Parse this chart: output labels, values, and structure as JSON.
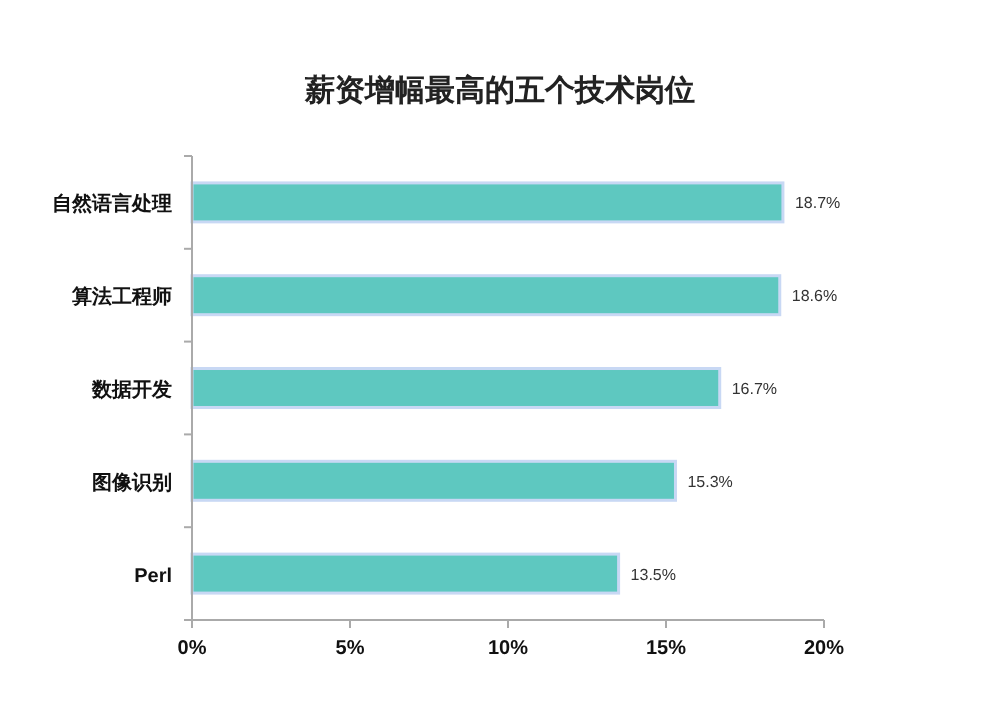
{
  "chart_data": {
    "type": "bar",
    "orientation": "horizontal",
    "title": "薪资增幅最高的五个技术岗位",
    "categories": [
      "自然语言处理",
      "算法工程师",
      "数据开发",
      "图像识别",
      "Perl"
    ],
    "values": [
      18.7,
      18.6,
      16.7,
      15.3,
      13.5
    ],
    "value_labels": [
      "18.7%",
      "18.6%",
      "16.7%",
      "15.3%",
      "13.5%"
    ],
    "color": "#5ec8c0",
    "xlim": [
      0,
      20
    ],
    "xticks": [
      {
        "value": 0,
        "label": "0%"
      },
      {
        "value": 5,
        "label": "5%"
      },
      {
        "value": 10,
        "label": "10%"
      },
      {
        "value": 15,
        "label": "15%"
      },
      {
        "value": 20,
        "label": "20%"
      }
    ],
    "grid": false
  }
}
